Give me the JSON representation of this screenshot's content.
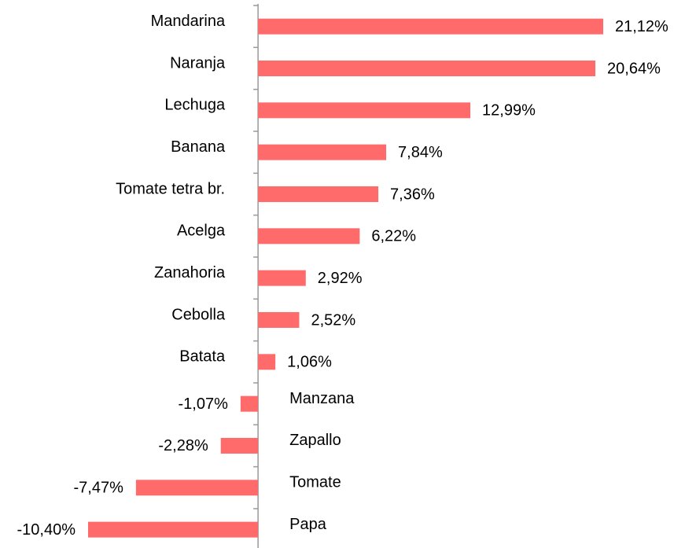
{
  "chart_data": {
    "type": "bar",
    "orientation": "horizontal",
    "color": "#ff6b6b",
    "categories": [
      "Mandarina",
      "Naranja",
      "Lechuga",
      "Banana",
      "Tomate tetra br.",
      "Acelga",
      "Zanahoria",
      "Cebolla",
      "Batata",
      "Manzana",
      "Zapallo",
      "Tomate",
      "Papa"
    ],
    "values": [
      21.12,
      20.64,
      12.99,
      7.84,
      7.36,
      6.22,
      2.92,
      2.52,
      1.06,
      -1.07,
      -2.28,
      -7.47,
      -10.4
    ],
    "value_labels": [
      "21,12%",
      "20,64%",
      "12,99%",
      "7,84%",
      "7,36%",
      "6,22%",
      "2,92%",
      "2,52%",
      "1,06%",
      "-1,07%",
      "-2,28%",
      "-7,47%",
      "-10,40%"
    ]
  }
}
